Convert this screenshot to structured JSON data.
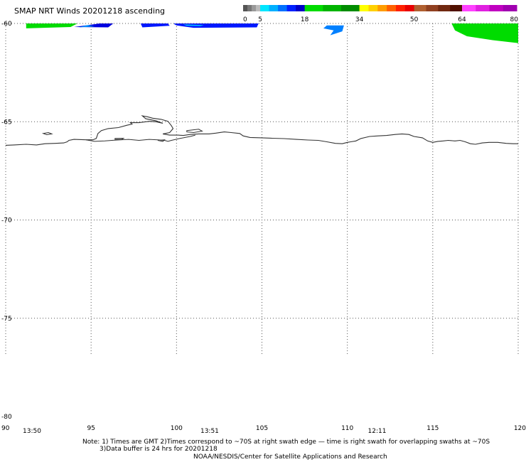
{
  "title": "SMAP NRT Winds 20201218 ascending",
  "colorbar": {
    "segments": [
      {
        "from": 0,
        "to": 5,
        "colors": [
          "#555555",
          "#777777",
          "#999999",
          "#bbbbbb"
        ]
      },
      {
        "from": 5,
        "to": 18,
        "colors": [
          "#00e6ff",
          "#00b0ff",
          "#0070ff",
          "#0020ff",
          "#0000c8"
        ]
      },
      {
        "from": 18,
        "to": 34,
        "colors": [
          "#00dc00",
          "#00b400",
          "#008c00"
        ]
      },
      {
        "from": 34,
        "to": 50,
        "colors": [
          "#ffff00",
          "#ffd000",
          "#ff9c00",
          "#ff6000",
          "#ff2000",
          "#e80000"
        ]
      },
      {
        "from": 50,
        "to": 64,
        "colors": [
          "#b06030",
          "#904020",
          "#702810",
          "#501000"
        ]
      },
      {
        "from": 64,
        "to": 80,
        "colors": [
          "#ff40ff",
          "#e020e0",
          "#c000c0",
          "#a000b0"
        ]
      }
    ],
    "labels": [
      "0",
      "5",
      "18",
      "34",
      "50",
      "64",
      "80"
    ],
    "label_values": [
      0,
      5,
      18,
      34,
      50,
      64,
      80
    ]
  },
  "map": {
    "lon_range": [
      90,
      120
    ],
    "lat_range": [
      -60,
      -80
    ],
    "lon_ticks": [
      90,
      95,
      100,
      105,
      110,
      115,
      120
    ],
    "lon_labels": [
      "90",
      "95",
      "100",
      "105",
      "110",
      "115",
      "120"
    ],
    "lat_ticks": [
      -60,
      -65,
      -70,
      -75,
      -80
    ],
    "lat_labels": [
      "-60",
      "-65",
      "-70",
      "-75",
      "-80"
    ],
    "grid_dotted": true,
    "times": [
      {
        "text": "13:50",
        "lon": 91.0
      },
      {
        "text": "13:51",
        "lon": 101.4
      },
      {
        "text": "12:11",
        "lon": 111.2
      }
    ]
  },
  "notes": [
    "Note: 1) Times are GMT 2)Times correspond to ~70S at right swath edge — time is right swath for overlapping swaths at ~70S",
    "3)Data buffer is 24 hrs for 20201218",
    "NOAA/NESDIS/Center for Satellite Applications and Research"
  ]
}
